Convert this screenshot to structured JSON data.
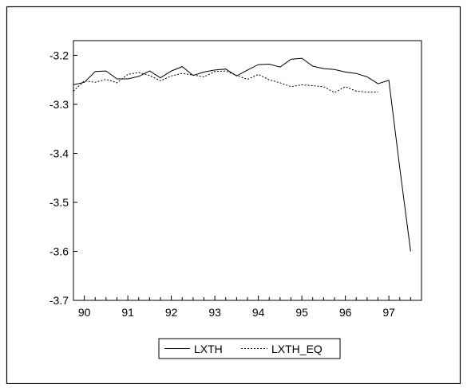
{
  "chart_data": {
    "type": "line",
    "title": "",
    "xlabel": "",
    "ylabel": "",
    "xlim": [
      89.75,
      97.75
    ],
    "ylim": [
      -3.7,
      -3.17
    ],
    "yticks": [
      -3.7,
      -3.6,
      -3.5,
      -3.4,
      -3.3,
      -3.2
    ],
    "ytick_labels": [
      "-3.7",
      "-3.6",
      "-3.5",
      "-3.4",
      "-3.3",
      "-3.2"
    ],
    "xticks": [
      90,
      91,
      92,
      93,
      94,
      95,
      96,
      97
    ],
    "xtick_labels": [
      "90",
      "91",
      "92",
      "93",
      "94",
      "95",
      "96",
      "97"
    ],
    "grid": false,
    "legend": "bottom-center",
    "series": [
      {
        "name": "LXTH",
        "style": "solid",
        "color": "#000000",
        "x": [
          89.75,
          90.0,
          90.25,
          90.5,
          90.75,
          91.0,
          91.25,
          91.5,
          91.75,
          92.0,
          92.25,
          92.5,
          92.75,
          93.0,
          93.25,
          93.5,
          93.75,
          94.0,
          94.25,
          94.5,
          94.75,
          95.0,
          95.25,
          95.5,
          95.75,
          96.0,
          96.25,
          96.5,
          96.75,
          97.0,
          97.25,
          97.5
        ],
        "values": [
          -3.26,
          -3.255,
          -3.233,
          -3.232,
          -3.248,
          -3.248,
          -3.243,
          -3.232,
          -3.246,
          -3.232,
          -3.223,
          -3.241,
          -3.234,
          -3.23,
          -3.228,
          -3.242,
          -3.23,
          -3.219,
          -3.218,
          -3.224,
          -3.208,
          -3.206,
          -3.222,
          -3.227,
          -3.229,
          -3.234,
          -3.237,
          -3.244,
          -3.258,
          -3.251,
          -3.43,
          -3.6
        ]
      },
      {
        "name": "LXTH_EQ",
        "style": "dashed",
        "color": "#000000",
        "x": [
          89.75,
          90.0,
          90.25,
          90.5,
          90.75,
          91.0,
          91.25,
          91.5,
          91.75,
          92.0,
          92.25,
          92.5,
          92.75,
          93.0,
          93.25,
          93.5,
          93.75,
          94.0,
          94.25,
          94.5,
          94.75,
          95.0,
          95.25,
          95.5,
          95.75,
          96.0,
          96.25,
          96.5,
          96.75
        ],
        "values": [
          -3.273,
          -3.252,
          -3.255,
          -3.249,
          -3.256,
          -3.239,
          -3.235,
          -3.241,
          -3.252,
          -3.242,
          -3.237,
          -3.24,
          -3.244,
          -3.233,
          -3.232,
          -3.241,
          -3.249,
          -3.239,
          -3.25,
          -3.256,
          -3.264,
          -3.26,
          -3.262,
          -3.264,
          -3.276,
          -3.264,
          -3.273,
          -3.275,
          -3.275
        ]
      }
    ]
  }
}
